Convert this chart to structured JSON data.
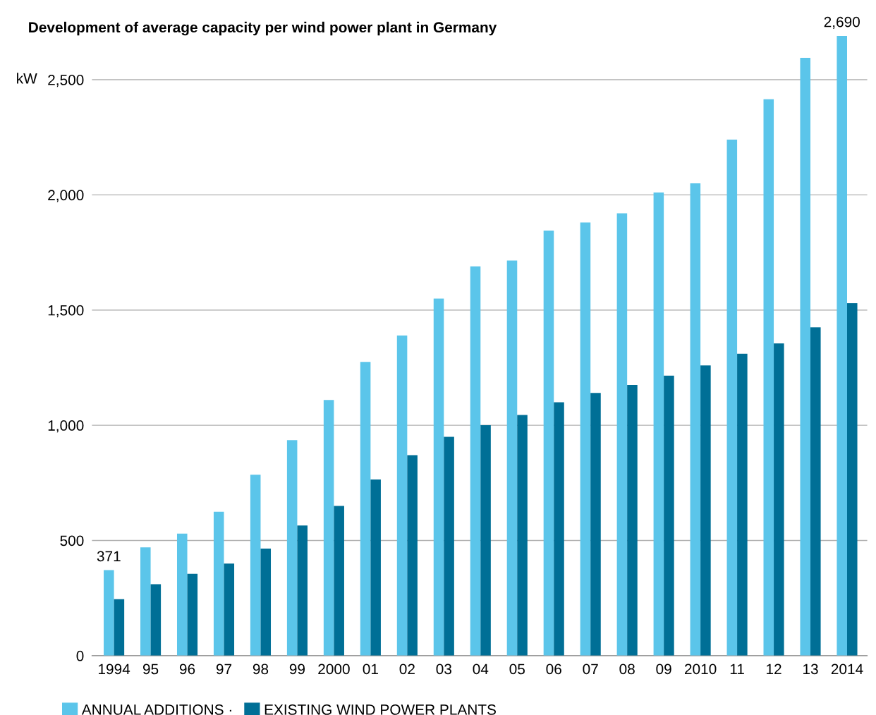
{
  "chart_data": {
    "type": "bar",
    "title": "Development of average capacity per wind power plant in Germany",
    "ylabel": "kW",
    "categories": [
      "1994",
      "95",
      "96",
      "97",
      "98",
      "99",
      "2000",
      "01",
      "02",
      "03",
      "04",
      "05",
      "06",
      "07",
      "08",
      "09",
      "2010",
      "11",
      "12",
      "13",
      "2014"
    ],
    "series": [
      {
        "name": "ANNUAL ADDITIONS ·",
        "color": "#5bc5ea",
        "values": [
          371,
          470,
          530,
          625,
          785,
          935,
          1110,
          1275,
          1390,
          1550,
          1690,
          1715,
          1845,
          1880,
          1920,
          2010,
          2050,
          2240,
          2415,
          2595,
          2690
        ],
        "value_labels": [
          "371",
          null,
          null,
          null,
          null,
          null,
          null,
          null,
          null,
          null,
          null,
          null,
          null,
          null,
          null,
          null,
          null,
          null,
          null,
          null,
          "2,690"
        ]
      },
      {
        "name": "EXISTING WIND POWER PLANTS",
        "color": "#006f96",
        "values": [
          245,
          310,
          355,
          400,
          465,
          565,
          650,
          765,
          870,
          950,
          1000,
          1045,
          1100,
          1140,
          1175,
          1215,
          1260,
          1310,
          1355,
          1425,
          1530
        ]
      }
    ],
    "ylim": [
      0,
      2700
    ],
    "yticks": [
      0,
      {
        "value": 500,
        "label": "500"
      },
      {
        "value": 1000,
        "label": "1,000"
      },
      {
        "value": 1500,
        "label": "1,500"
      },
      {
        "value": 2000,
        "label": "2,000"
      },
      {
        "value": 2500,
        "label": "2,500"
      }
    ],
    "grid": "y",
    "legend": "bottom left"
  }
}
